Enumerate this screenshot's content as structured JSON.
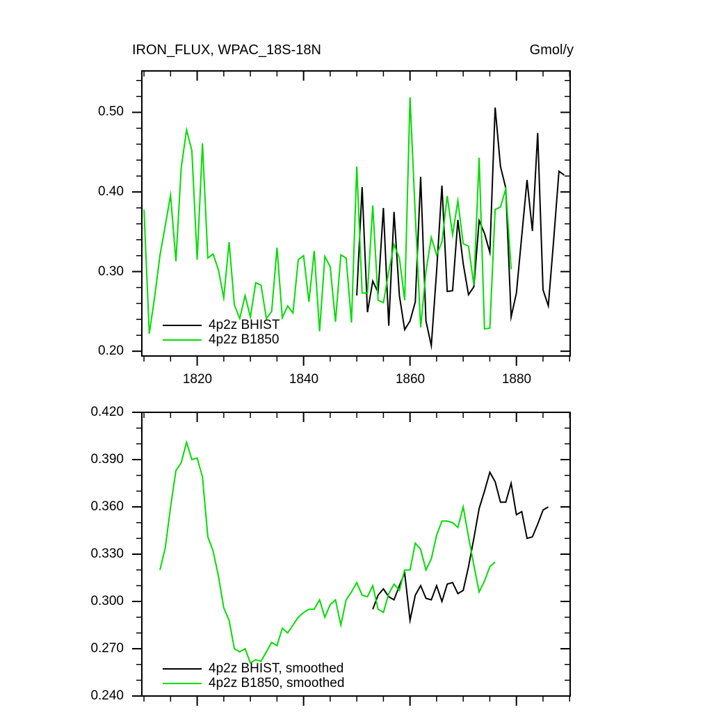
{
  "page": {
    "background": "#ffffff",
    "text_color": "#000000"
  },
  "top_panel": {
    "title_left": "IRON_FLUX, WPAC_18S-18N",
    "title_right": "Gmol/y",
    "y_tick_labels": [
      "0.50",
      "0.40",
      "0.30",
      "0.20"
    ],
    "x_tick_labels": [
      "1820",
      "1840",
      "1860",
      "1880"
    ],
    "legend": [
      {
        "label": "4p2z BHIST",
        "color": "#000000"
      },
      {
        "label": "4p2z B1850",
        "color": "#00dd00"
      }
    ]
  },
  "bottom_panel": {
    "y_tick_labels": [
      "0.420",
      "0.390",
      "0.360",
      "0.330",
      "0.300",
      "0.270",
      "0.240"
    ],
    "legend": [
      {
        "label": "4p2z BHIST, smoothed",
        "color": "#000000"
      },
      {
        "label": "4p2z B1850, smoothed",
        "color": "#00dd00"
      }
    ]
  },
  "chart_data": [
    {
      "type": "line",
      "title": "IRON_FLUX, WPAC_18S-18N",
      "ylabel_units": "Gmol/y",
      "xlim": [
        1809.6,
        1890.1
      ],
      "ylim": [
        0.194,
        0.552
      ],
      "x_major_ticks": [
        1820,
        1840,
        1860,
        1880
      ],
      "x_minor_step": 5,
      "y_major_ticks": [
        0.2,
        0.3,
        0.4,
        0.5
      ],
      "y_minor_step": 0.02,
      "grid": false,
      "legend_position": "lower-left-inside",
      "series": [
        {
          "name": "4p2z BHIST",
          "color": "#000000",
          "x_start": 1850,
          "x_step": 1,
          "values": [
            0.27,
            0.406,
            0.249,
            0.288,
            0.274,
            0.38,
            0.232,
            0.375,
            0.27,
            0.227,
            0.238,
            0.262,
            0.419,
            0.238,
            0.207,
            0.3,
            0.408,
            0.275,
            0.276,
            0.365,
            0.31,
            0.271,
            0.281,
            0.364,
            0.348,
            0.324,
            0.506,
            0.432,
            0.405,
            0.243,
            0.273,
            0.345,
            0.415,
            0.351,
            0.474,
            0.277,
            0.257,
            0.34,
            0.426,
            0.421
          ]
        },
        {
          "name": "4p2z B1850",
          "color": "#00dd00",
          "x_start": 1810,
          "x_step": 1,
          "values": [
            0.378,
            0.222,
            0.268,
            0.32,
            0.358,
            0.396,
            0.313,
            0.43,
            0.478,
            0.452,
            0.315,
            0.461,
            0.317,
            0.322,
            0.302,
            0.267,
            0.337,
            0.258,
            0.241,
            0.27,
            0.243,
            0.286,
            0.283,
            0.241,
            0.25,
            0.33,
            0.242,
            0.257,
            0.248,
            0.315,
            0.32,
            0.262,
            0.326,
            0.225,
            0.319,
            0.306,
            0.237,
            0.321,
            0.317,
            0.236,
            0.432,
            0.273,
            0.273,
            0.383,
            0.264,
            0.261,
            0.3,
            0.334,
            0.317,
            0.264,
            0.519,
            0.37,
            0.23,
            0.3,
            0.343,
            0.321,
            0.337,
            0.395,
            0.346,
            0.389,
            0.335,
            0.332,
            0.283,
            0.443,
            0.228,
            0.229,
            0.378,
            0.381,
            0.404,
            0.303
          ]
        }
      ]
    },
    {
      "type": "line",
      "title": "",
      "xlim": [
        1809.6,
        1890.1
      ],
      "ylim": [
        0.24,
        0.42
      ],
      "x_major_ticks": [
        1820,
        1840,
        1860,
        1880
      ],
      "x_minor_step": 5,
      "y_major_ticks": [
        0.24,
        0.27,
        0.3,
        0.33,
        0.36,
        0.39,
        0.42
      ],
      "y_minor_step": 0.01,
      "grid": false,
      "legend_position": "lower-left-inside",
      "series": [
        {
          "name": "4p2z BHIST, smoothed",
          "color": "#000000",
          "x_start": 1853,
          "x_step": 1,
          "values": [
            0.295,
            0.304,
            0.308,
            0.303,
            0.301,
            0.31,
            0.318,
            0.288,
            0.304,
            0.31,
            0.302,
            0.301,
            0.31,
            0.3,
            0.311,
            0.312,
            0.305,
            0.307,
            0.322,
            0.34,
            0.359,
            0.37,
            0.382,
            0.376,
            0.363,
            0.363,
            0.375,
            0.355,
            0.357,
            0.34,
            0.341,
            0.349,
            0.358,
            0.36
          ]
        },
        {
          "name": "4p2z B1850, smoothed",
          "color": "#00dd00",
          "x_start": 1813,
          "x_step": 1,
          "values": [
            0.32,
            0.334,
            0.36,
            0.383,
            0.388,
            0.401,
            0.39,
            0.391,
            0.379,
            0.341,
            0.332,
            0.316,
            0.296,
            0.288,
            0.27,
            0.268,
            0.27,
            0.261,
            0.263,
            0.262,
            0.268,
            0.274,
            0.272,
            0.283,
            0.28,
            0.285,
            0.29,
            0.293,
            0.295,
            0.295,
            0.301,
            0.29,
            0.298,
            0.301,
            0.285,
            0.301,
            0.306,
            0.312,
            0.304,
            0.303,
            0.31,
            0.295,
            0.293,
            0.305,
            0.311,
            0.307,
            0.32,
            0.32,
            0.337,
            0.333,
            0.32,
            0.327,
            0.342,
            0.351,
            0.351,
            0.35,
            0.347,
            0.36,
            0.341,
            0.323,
            0.306,
            0.313,
            0.322,
            0.325
          ]
        }
      ]
    }
  ]
}
